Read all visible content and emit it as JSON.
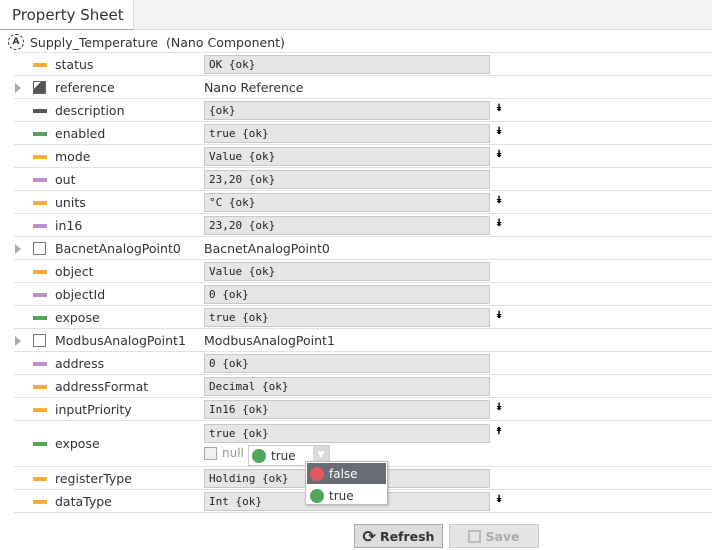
{
  "tab": {
    "label": "Property Sheet"
  },
  "header": {
    "icon": "A",
    "name": "Supply_Temperature",
    "type": "(Nano Component)"
  },
  "colors": {
    "orange": "#f8ac3c",
    "purple": "#b992cd",
    "green": "#4fa85a",
    "dark": "#555555",
    "red": "#e05a5e"
  },
  "rows": [
    {
      "name": "status",
      "kind": "bar",
      "color": "orange",
      "value": "OK {ok}",
      "chev": ""
    },
    {
      "name": "reference",
      "kind": "cube",
      "expand": true,
      "plain": "Nano Reference"
    },
    {
      "name": "description",
      "kind": "bar",
      "color": "dark",
      "value": " {ok}",
      "chev": "down"
    },
    {
      "name": "enabled",
      "kind": "bar",
      "color": "green",
      "value": "true {ok}",
      "chev": "down"
    },
    {
      "name": "mode",
      "kind": "bar",
      "color": "orange",
      "value": "Value {ok}",
      "chev": "down"
    },
    {
      "name": "out",
      "kind": "bar",
      "color": "purple",
      "value": "23,20 {ok}",
      "chev": ""
    },
    {
      "name": "units",
      "kind": "bar",
      "color": "orange",
      "value": "°C {ok}",
      "chev": "down"
    },
    {
      "name": "in16",
      "kind": "bar",
      "color": "purple",
      "value": "23,20 {ok}",
      "chev": "down"
    },
    {
      "name": "BacnetAnalogPoint0",
      "kind": "box",
      "expand": true,
      "plain": "BacnetAnalogPoint0"
    },
    {
      "name": "object",
      "kind": "bar",
      "color": "orange",
      "value": "Value {ok}",
      "chev": ""
    },
    {
      "name": "objectId",
      "kind": "bar",
      "color": "purple",
      "value": "0 {ok}",
      "chev": ""
    },
    {
      "name": "expose",
      "kind": "bar",
      "color": "green",
      "value": "true {ok}",
      "chev": "down"
    },
    {
      "name": "ModbusAnalogPoint1",
      "kind": "box",
      "expand": true,
      "plain": "ModbusAnalogPoint1"
    },
    {
      "name": "address",
      "kind": "bar",
      "color": "purple",
      "value": "0 {ok}",
      "chev": ""
    },
    {
      "name": "addressFormat",
      "kind": "bar",
      "color": "orange",
      "value": "Decimal {ok}",
      "chev": ""
    },
    {
      "name": "inputPriority",
      "kind": "bar",
      "color": "orange",
      "value": "In16 {ok}",
      "chev": "down"
    },
    {
      "name": "expose",
      "kind": "bar",
      "color": "green",
      "value": "true {ok}",
      "chev": "up",
      "editor": true
    },
    {
      "name": "registerType",
      "kind": "bar",
      "color": "orange",
      "value": "Holding {ok}",
      "chev": ""
    },
    {
      "name": "dataType",
      "kind": "bar",
      "color": "orange",
      "value": "Int {ok}",
      "chev": "down"
    }
  ],
  "editor": {
    "null_label": "null",
    "selected": "true",
    "options": [
      {
        "label": "false",
        "color": "red",
        "highlighted": true
      },
      {
        "label": "true",
        "color": "green"
      }
    ]
  },
  "buttons": {
    "refresh": "Refresh",
    "save": "Save"
  }
}
